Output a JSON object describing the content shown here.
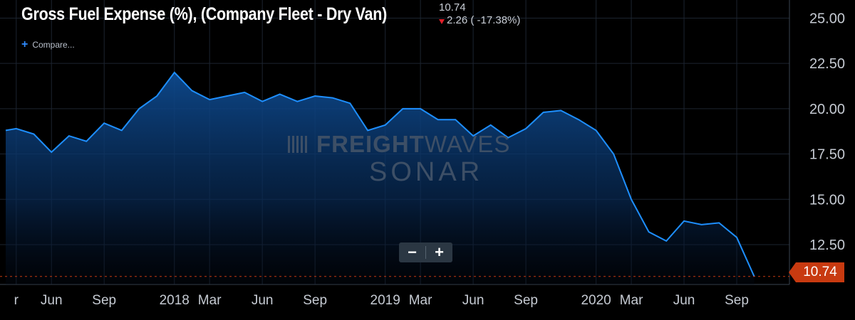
{
  "header": {
    "title": "Gross Fuel Expense (%), (Company Fleet - Dry Van)",
    "current_value": "10.74",
    "change_text": "2.26 ( -17.38%)",
    "compare_label": "Compare..."
  },
  "zoom": {
    "minus_label": "−",
    "plus_label": "+"
  },
  "watermark": {
    "line1_bold": "FREIGHT",
    "line1_thin": "WAVES",
    "line2": "SONAR"
  },
  "last_value_badge": "10.74",
  "colors": {
    "background": "#000000",
    "line": "#1e8fff",
    "badge": "#c83a10",
    "grid": "#1c2430"
  },
  "chart_data": {
    "type": "area",
    "y_axis_position": "right",
    "ylim": [
      10.3,
      26.0
    ],
    "y_ticks": [
      "25.00",
      "22.50",
      "20.00",
      "17.50",
      "15.00",
      "12.50"
    ],
    "y_tick_values": [
      25.0,
      22.5,
      20.0,
      17.5,
      15.0,
      12.5
    ],
    "x_tick_labels": [
      "r",
      "Jun",
      "Sep",
      "2018",
      "Mar",
      "Jun",
      "Sep",
      "2019",
      "Mar",
      "Jun",
      "Sep",
      "2020",
      "Mar",
      "Jun",
      "Sep"
    ],
    "x_tick_months": [
      2017.25,
      2017.417,
      2017.667,
      2018.0,
      2018.167,
      2018.417,
      2018.667,
      2019.0,
      2019.167,
      2019.417,
      2019.667,
      2020.0,
      2020.167,
      2020.417,
      2020.667
    ],
    "x_range": [
      2017.2,
      2020.917
    ],
    "series": [
      {
        "values": [
          [
            2017.2,
            18.8
          ],
          [
            2017.25,
            18.9
          ],
          [
            2017.333,
            18.6
          ],
          [
            2017.417,
            17.6
          ],
          [
            2017.5,
            18.5
          ],
          [
            2017.583,
            18.2
          ],
          [
            2017.667,
            19.2
          ],
          [
            2017.75,
            18.8
          ],
          [
            2017.833,
            20.0
          ],
          [
            2017.917,
            20.7
          ],
          [
            2018.0,
            22.0
          ],
          [
            2018.083,
            21.0
          ],
          [
            2018.167,
            20.5
          ],
          [
            2018.25,
            20.7
          ],
          [
            2018.333,
            20.9
          ],
          [
            2018.417,
            20.4
          ],
          [
            2018.5,
            20.8
          ],
          [
            2018.583,
            20.4
          ],
          [
            2018.667,
            20.7
          ],
          [
            2018.75,
            20.6
          ],
          [
            2018.833,
            20.3
          ],
          [
            2018.917,
            18.8
          ],
          [
            2019.0,
            19.1
          ],
          [
            2019.083,
            20.0
          ],
          [
            2019.167,
            20.0
          ],
          [
            2019.25,
            19.4
          ],
          [
            2019.333,
            19.4
          ],
          [
            2019.417,
            18.5
          ],
          [
            2019.5,
            19.1
          ],
          [
            2019.583,
            18.4
          ],
          [
            2019.667,
            18.9
          ],
          [
            2019.75,
            19.8
          ],
          [
            2019.833,
            19.9
          ],
          [
            2019.917,
            19.4
          ],
          [
            2020.0,
            18.8
          ],
          [
            2020.083,
            17.5
          ],
          [
            2020.167,
            15.0
          ],
          [
            2020.25,
            13.2
          ],
          [
            2020.333,
            12.7
          ],
          [
            2020.417,
            13.8
          ],
          [
            2020.5,
            13.6
          ],
          [
            2020.583,
            13.7
          ],
          [
            2020.667,
            12.9
          ],
          [
            2020.75,
            10.74
          ]
        ]
      }
    ],
    "last_value_line": 10.74
  }
}
